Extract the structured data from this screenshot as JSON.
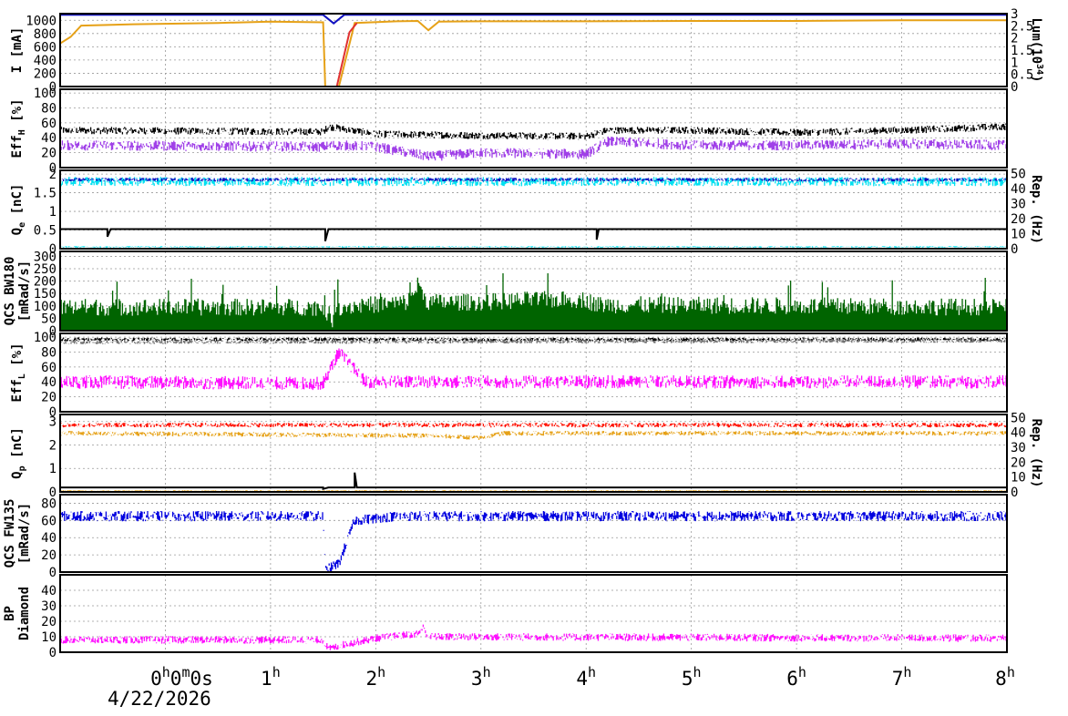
{
  "chart_data": {
    "type": "line",
    "date": "4/22/2026",
    "x_ticks": [
      {
        "main": "0",
        "sup": "h",
        "extra": "0",
        "sup2": "m",
        "extra2": "0s"
      },
      {
        "main": "1",
        "sup": "h"
      },
      {
        "main": "2",
        "sup": "h"
      },
      {
        "main": "3",
        "sup": "h"
      },
      {
        "main": "4",
        "sup": "h"
      },
      {
        "main": "5",
        "sup": "h"
      },
      {
        "main": "6",
        "sup": "h"
      },
      {
        "main": "7",
        "sup": "h"
      },
      {
        "main": "8",
        "sup": "h"
      }
    ],
    "xlim_hours": [
      -1.0,
      8.0
    ],
    "panels": [
      {
        "id": "current",
        "ylabel": "I [mA]",
        "ylim": [
          0,
          1100
        ],
        "yticks": [
          "0",
          "200",
          "400",
          "600",
          "800",
          "1000"
        ],
        "y2label": "Lum(10",
        "y2label_sup": "34",
        "y2label_end": ")",
        "y2lim": [
          0,
          3
        ],
        "y2ticks": [
          "0",
          "0.5",
          "1",
          "1.5",
          "2",
          "2.5",
          "3"
        ],
        "series": [
          {
            "color": "#e6a117",
            "points": [
              [
                -1,
                650
              ],
              [
                -0.9,
                750
              ],
              [
                -0.8,
                920
              ],
              [
                -0.3,
                940
              ],
              [
                0.5,
                960
              ],
              [
                1.0,
                980
              ],
              [
                1.5,
                970
              ],
              [
                1.52,
                0
              ],
              [
                1.65,
                0
              ],
              [
                1.8,
                960
              ],
              [
                2.2,
                985
              ],
              [
                2.4,
                990
              ],
              [
                2.5,
                850
              ],
              [
                2.6,
                980
              ],
              [
                3.0,
                985
              ],
              [
                4.0,
                985
              ],
              [
                5.0,
                990
              ],
              [
                6.0,
                990
              ],
              [
                7.0,
                1000
              ],
              [
                8.0,
                1000
              ]
            ]
          },
          {
            "color": "#e03030",
            "points": [
              [
                1.52,
                0
              ],
              [
                1.63,
                0
              ],
              [
                1.75,
                820
              ],
              [
                1.82,
                960
              ]
            ]
          },
          {
            "color": "#1010c0",
            "axis": "y2",
            "points": [
              [
                -1,
                2.95
              ],
              [
                1.5,
                2.95
              ],
              [
                1.6,
                2.6
              ],
              [
                1.7,
                2.95
              ],
              [
                8,
                2.95
              ]
            ]
          }
        ]
      },
      {
        "id": "eff_her",
        "ylabel": "Eff",
        "ylabel_sub": "H",
        "ylabel_end": " [%]",
        "ylim": [
          0,
          105
        ],
        "yticks": [
          "0",
          "20",
          "40",
          "60",
          "80",
          "100"
        ],
        "series": [
          {
            "color": "#000000",
            "level": [
              [
                -1,
                50
              ],
              [
                1.5,
                48
              ],
              [
                1.55,
                55
              ],
              [
                2.0,
                45
              ],
              [
                3.0,
                43
              ],
              [
                4.0,
                42
              ],
              [
                4.2,
                50
              ],
              [
                5.0,
                50
              ],
              [
                6.0,
                47
              ],
              [
                7.0,
                50
              ],
              [
                8.0,
                55
              ]
            ],
            "spread": 10
          },
          {
            "color": "#a040e8",
            "level": [
              [
                -1,
                30
              ],
              [
                1.5,
                28
              ],
              [
                1.6,
                30
              ],
              [
                2.0,
                28
              ],
              [
                2.5,
                15
              ],
              [
                3.0,
                20
              ],
              [
                4.0,
                18
              ],
              [
                4.2,
                35
              ],
              [
                5.0,
                30
              ],
              [
                6.0,
                30
              ],
              [
                7.0,
                32
              ],
              [
                8.0,
                30
              ]
            ],
            "spread": 14
          }
        ]
      },
      {
        "id": "qe",
        "ylabel": "Q",
        "ylabel_sub": "e",
        "ylabel_end": " [nC]",
        "ylim": [
          0,
          2.1
        ],
        "yticks": [
          "0",
          "0.5",
          "1",
          "1.5",
          "2"
        ],
        "y2label": "Rep. (Hz)",
        "y2lim": [
          0,
          52
        ],
        "y2ticks": [
          "0",
          "10",
          "20",
          "30",
          "40",
          "50"
        ],
        "series": [
          {
            "color": "#00e0f0",
            "level": [
              [
                -1,
                1.8
              ],
              [
                8,
                1.8
              ]
            ],
            "spread": 0.25
          },
          {
            "color": "#1010c0",
            "level": [
              [
                -1,
                1.85
              ],
              [
                8,
                1.85
              ]
            ],
            "spread": 0.1
          },
          {
            "color": "#00e0f0",
            "level": [
              [
                -1,
                0.05
              ],
              [
                8,
                0.05
              ]
            ],
            "spread": 0.04
          },
          {
            "color": "#000000",
            "axis": "y2",
            "points": [
              [
                -1,
                13
              ],
              [
                -0.55,
                13
              ],
              [
                -0.55,
                8
              ],
              [
                -0.52,
                13
              ],
              [
                1.52,
                13
              ],
              [
                1.52,
                5
              ],
              [
                1.55,
                13
              ],
              [
                4.1,
                13
              ],
              [
                4.1,
                6
              ],
              [
                4.12,
                13
              ],
              [
                8,
                13
              ]
            ]
          }
        ]
      },
      {
        "id": "qcs_bw180",
        "ylabel": "QCS BW180",
        "ylabel2": "[mRad/s]",
        "ylim": [
          0,
          320
        ],
        "yticks": [
          "0",
          "50",
          "100",
          "150",
          "200",
          "250",
          "300"
        ],
        "series": [
          {
            "color": "#006400",
            "level": [
              [
                -1,
                60
              ],
              [
                1.5,
                60
              ],
              [
                1.6,
                5
              ],
              [
                1.62,
                60
              ],
              [
                2.3,
                80
              ],
              [
                2.4,
                150
              ],
              [
                2.5,
                80
              ],
              [
                3.0,
                80
              ],
              [
                3.5,
                90
              ],
              [
                4.0,
                90
              ],
              [
                4.1,
                70
              ],
              [
                8,
                60
              ]
            ],
            "spread": 70,
            "spike": true
          }
        ]
      },
      {
        "id": "eff_ler",
        "ylabel": "Eff",
        "ylabel_sub": "L",
        "ylabel_end": " [%]",
        "ylim": [
          0,
          105
        ],
        "yticks": [
          "0",
          "20",
          "40",
          "60",
          "80",
          "100"
        ],
        "series": [
          {
            "color": "#000000",
            "level": [
              [
                -1,
                97
              ],
              [
                8,
                97
              ]
            ],
            "spread": 5
          },
          {
            "color": "#707070",
            "level": [
              [
                -1,
                93
              ],
              [
                8,
                95
              ]
            ],
            "spread": 5
          },
          {
            "color": "#ff10ff",
            "level": [
              [
                -1,
                40
              ],
              [
                1.5,
                38
              ],
              [
                1.65,
                80
              ],
              [
                1.9,
                40
              ],
              [
                8,
                40
              ]
            ],
            "spread": 18
          },
          {
            "color": "#ff10ff",
            "level": [
              [
                -1,
                0.5
              ],
              [
                8,
                0.5
              ]
            ],
            "spread": 0.5
          }
        ]
      },
      {
        "id": "qp",
        "ylabel": "Q",
        "ylabel_sub": "p",
        "ylabel_end": " [nC]",
        "ylim": [
          0,
          3.3
        ],
        "yticks": [
          "0",
          "1",
          "2",
          "3"
        ],
        "y2label": "Rep. (Hz)",
        "y2lim": [
          0,
          52
        ],
        "y2ticks": [
          "0",
          "10",
          "20",
          "30",
          "40",
          "50"
        ],
        "series": [
          {
            "color": "#ff1000",
            "level": [
              [
                -1,
                2.85
              ],
              [
                8,
                2.85
              ]
            ],
            "spread": 0.2
          },
          {
            "color": "#e6a117",
            "level": [
              [
                -1,
                2.5
              ],
              [
                2.5,
                2.4
              ],
              [
                3.0,
                2.3
              ],
              [
                3.2,
                2.5
              ],
              [
                8,
                2.5
              ]
            ],
            "spread": 0.2
          },
          {
            "color": "#e6a117",
            "level": [
              [
                -1,
                0.05
              ],
              [
                8,
                0.05
              ]
            ],
            "spread": 0.05
          },
          {
            "color": "#000000",
            "axis": "y2",
            "points": [
              [
                -1,
                3
              ],
              [
                1.5,
                3
              ],
              [
                1.5,
                2
              ],
              [
                1.55,
                3
              ],
              [
                1.8,
                3
              ],
              [
                1.8,
                13
              ],
              [
                1.82,
                3
              ],
              [
                8,
                3
              ]
            ]
          }
        ]
      },
      {
        "id": "qcs_fw135",
        "ylabel": "QCS FW135",
        "ylabel2": "[mRad/s]",
        "ylim": [
          0,
          90
        ],
        "yticks": [
          "0",
          "20",
          "40",
          "60",
          "80"
        ],
        "series": [
          {
            "color": "#0000e0",
            "level": [
              [
                -1,
                65
              ],
              [
                1.5,
                65
              ],
              [
                1.52,
                2
              ],
              [
                1.65,
                10
              ],
              [
                1.8,
                60
              ],
              [
                2.2,
                65
              ],
              [
                8,
                65
              ]
            ],
            "spread": 12
          }
        ]
      },
      {
        "id": "bp_diamond",
        "ylabel": "BP",
        "ylabel2": "Diamond",
        "ylim": [
          0,
          50
        ],
        "yticks": [
          "0",
          "10",
          "20",
          "30",
          "40"
        ],
        "series": [
          {
            "color": "#ff10ff",
            "level": [
              [
                -1,
                8
              ],
              [
                1.5,
                8
              ],
              [
                1.55,
                2
              ],
              [
                1.7,
                5
              ],
              [
                2.0,
                9
              ],
              [
                2.4,
                12
              ],
              [
                2.45,
                16
              ],
              [
                2.5,
                10
              ],
              [
                8,
                9
              ]
            ],
            "spread": 5
          }
        ]
      }
    ]
  }
}
